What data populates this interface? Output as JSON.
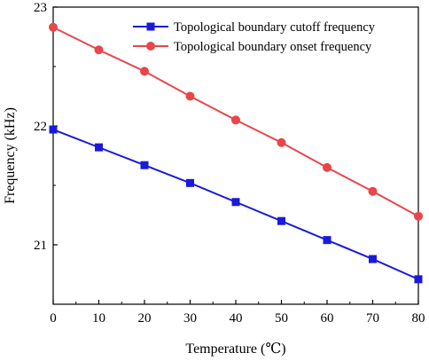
{
  "chart_data": {
    "type": "line",
    "xlabel": "Temperature (℃)",
    "ylabel": "Frequency (kHz)",
    "xlim": [
      0,
      80
    ],
    "ylim": [
      20.5,
      23
    ],
    "x_ticks": [
      0,
      10,
      20,
      30,
      40,
      50,
      60,
      70,
      80
    ],
    "y_ticks": [
      21,
      22,
      23
    ],
    "x_tick_labels": [
      "0",
      "10",
      "20",
      "30",
      "40",
      "50",
      "60",
      "70",
      "80"
    ],
    "y_tick_labels": [
      "21",
      "22",
      "23"
    ],
    "grid": false,
    "legend_position": "top-right",
    "x": [
      0,
      10,
      20,
      30,
      40,
      50,
      60,
      70,
      80
    ],
    "series": [
      {
        "name": "Topological boundary cutoff frequency",
        "color": "#1a1adb",
        "marker": "square",
        "values": [
          21.97,
          21.82,
          21.67,
          21.52,
          21.36,
          21.2,
          21.04,
          20.88,
          20.71
        ]
      },
      {
        "name": "Topological boundary onset frequency",
        "color": "#e8464a",
        "marker": "circle",
        "values": [
          22.83,
          22.64,
          22.46,
          22.25,
          22.05,
          21.86,
          21.65,
          21.45,
          21.24
        ]
      }
    ]
  }
}
